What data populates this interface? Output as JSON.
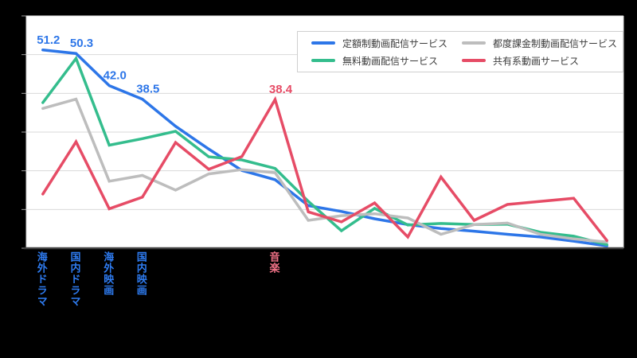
{
  "chart_data": {
    "type": "line",
    "title": "",
    "categories": [
      {
        "label": "海外ドラマ",
        "color": "#2e7bf0"
      },
      {
        "label": "国内ドラマ",
        "color": "#2e7bf0"
      },
      {
        "label": "海外映画",
        "color": "#2e7bf0"
      },
      {
        "label": "国内映画",
        "color": "#2e7bf0"
      },
      {
        "label": "",
        "color": ""
      },
      {
        "label": "",
        "color": ""
      },
      {
        "label": "",
        "color": ""
      },
      {
        "label": "音楽",
        "color": "#ef7186"
      },
      {
        "label": "",
        "color": ""
      },
      {
        "label": "",
        "color": ""
      },
      {
        "label": "",
        "color": ""
      },
      {
        "label": "",
        "color": ""
      },
      {
        "label": "",
        "color": ""
      },
      {
        "label": "",
        "color": ""
      },
      {
        "label": "",
        "color": ""
      },
      {
        "label": "",
        "color": ""
      },
      {
        "label": "",
        "color": ""
      },
      {
        "label": "",
        "color": ""
      }
    ],
    "series": [
      {
        "key": "subscription-vod",
        "name": "定額制動画配信サービス",
        "color": "#2d76e8",
        "values": [
          51.2,
          50.3,
          42.0,
          38.5,
          31.5,
          25.6,
          20.1,
          17.7,
          11.0,
          9.5,
          7.6,
          6.1,
          5.1,
          4.4,
          3.6,
          2.9,
          1.8,
          0.6
        ]
      },
      {
        "key": "free-vod",
        "name": "無料動画配信サービス",
        "color": "#34bd8d",
        "values": [
          37.6,
          49.0,
          26.6,
          28.3,
          30.2,
          23.6,
          22.8,
          20.6,
          12.1,
          4.5,
          10.3,
          6.0,
          6.4,
          6.1,
          6.2,
          4.1,
          3.1,
          0.9
        ]
      },
      {
        "key": "tvod",
        "name": "都度課金制動画配信サービス",
        "color": "#bdbdbd",
        "values": [
          36.1,
          38.5,
          17.3,
          18.8,
          15.0,
          19.2,
          20.3,
          19.5,
          7.2,
          8.4,
          8.9,
          7.8,
          3.6,
          6.1,
          6.5,
          3.6,
          2.4,
          1.6
        ]
      },
      {
        "key": "video-sharing",
        "name": "共有系動画サービス",
        "color": "#e64c66",
        "values": [
          14.0,
          27.5,
          10.2,
          13.2,
          27.3,
          20.4,
          23.7,
          38.4,
          9.4,
          6.8,
          11.7,
          2.9,
          18.4,
          7.2,
          11.3,
          12.1,
          12.9,
          2.0
        ]
      }
    ],
    "annotations": [
      {
        "series": 0,
        "point": 0,
        "text": "51.2"
      },
      {
        "series": 0,
        "point": 1,
        "text": "50.3"
      },
      {
        "series": 0,
        "point": 2,
        "text": "42.0"
      },
      {
        "series": 0,
        "point": 3,
        "text": "38.5"
      },
      {
        "series": 3,
        "point": 7,
        "text": "38.4"
      }
    ],
    "ylim": [
      0,
      60
    ],
    "ytick_step": 10,
    "y_tick_labels_visible": false,
    "grid": true,
    "legend_position": "top-right",
    "palette": {
      "background": "#000000",
      "plot_background": "#ffffff",
      "gridline": "#d9d9d9",
      "axis_line": "#424242",
      "tick_mark": "#9e9e9e",
      "legend_border": "#cfcfcf",
      "legend_text": "#3c3c3c"
    }
  }
}
